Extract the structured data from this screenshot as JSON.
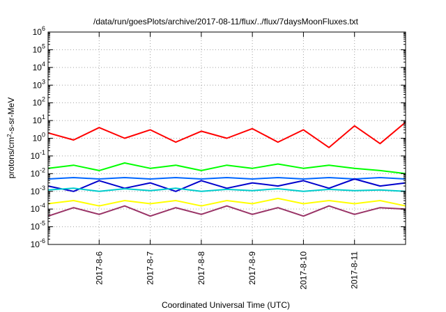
{
  "chart_data": {
    "type": "line",
    "title": "/data/run/goesPlots/archive/2017-08-11/flux/../flux/7daysMoonFluxes.txt",
    "xlabel": "Coordinated Universal Time (UTC)",
    "ylabel_parts": {
      "prefix": "protons/cm",
      "sup": "2",
      "suffix": "-s-sr-MeV"
    },
    "y_scale": "log",
    "ylim": [
      1e-06,
      1000000.0
    ],
    "y_ticks": [
      {
        "base": "10",
        "exp": "-6"
      },
      {
        "base": "10",
        "exp": "-5"
      },
      {
        "base": "10",
        "exp": "-4"
      },
      {
        "base": "10",
        "exp": "-3"
      },
      {
        "base": "10",
        "exp": "-2"
      },
      {
        "base": "10",
        "exp": "-1"
      },
      {
        "base": "10",
        "exp": "0"
      },
      {
        "base": "10",
        "exp": "1"
      },
      {
        "base": "10",
        "exp": "2"
      },
      {
        "base": "10",
        "exp": "3"
      },
      {
        "base": "10",
        "exp": "4"
      },
      {
        "base": "10",
        "exp": "5"
      },
      {
        "base": "10",
        "exp": "6"
      }
    ],
    "x_range": [
      "2017-08-05 00:00",
      "2017-08-12 00:00"
    ],
    "x_ticks": [
      {
        "label": "2017-8-6",
        "at": "2017-08-06 00:00"
      },
      {
        "label": "2017-8-7",
        "at": "2017-08-07 00:00"
      },
      {
        "label": "2017-8-8",
        "at": "2017-08-08 00:00"
      },
      {
        "label": "2017-8-9",
        "at": "2017-08-09 00:00"
      },
      {
        "label": "2017-8-10",
        "at": "2017-08-10 00:00"
      },
      {
        "label": "2017-8-11",
        "at": "2017-08-11 00:00"
      }
    ],
    "grid": true,
    "series": [
      {
        "color": "#ff0000",
        "x": [
          "2017-08-05 00:00",
          "2017-08-05 12:00",
          "2017-08-06 00:00",
          "2017-08-06 12:00",
          "2017-08-07 00:00",
          "2017-08-07 12:00",
          "2017-08-08 00:00",
          "2017-08-08 12:00",
          "2017-08-09 00:00",
          "2017-08-09 12:00",
          "2017-08-10 00:00",
          "2017-08-10 12:00",
          "2017-08-11 00:00",
          "2017-08-11 12:00",
          "2017-08-12 00:00"
        ],
        "y": [
          2,
          0.8,
          4,
          1,
          3,
          0.6,
          2.5,
          1,
          3.5,
          0.6,
          3,
          0.3,
          5,
          0.5,
          8
        ]
      },
      {
        "color": "#00ff00",
        "x": [
          "2017-08-05 00:00",
          "2017-08-05 12:00",
          "2017-08-06 00:00",
          "2017-08-06 12:00",
          "2017-08-07 00:00",
          "2017-08-07 12:00",
          "2017-08-08 00:00",
          "2017-08-08 12:00",
          "2017-08-09 00:00",
          "2017-08-09 12:00",
          "2017-08-10 00:00",
          "2017-08-10 12:00",
          "2017-08-11 00:00",
          "2017-08-11 12:00",
          "2017-08-12 00:00"
        ],
        "y": [
          0.02,
          0.03,
          0.015,
          0.04,
          0.02,
          0.03,
          0.015,
          0.03,
          0.02,
          0.035,
          0.02,
          0.03,
          0.02,
          0.015,
          0.01
        ]
      },
      {
        "color": "#0066ff",
        "x": [
          "2017-08-05 00:00",
          "2017-08-05 12:00",
          "2017-08-06 00:00",
          "2017-08-06 12:00",
          "2017-08-07 00:00",
          "2017-08-07 12:00",
          "2017-08-08 00:00",
          "2017-08-08 12:00",
          "2017-08-09 00:00",
          "2017-08-09 12:00",
          "2017-08-10 00:00",
          "2017-08-10 12:00",
          "2017-08-11 00:00",
          "2017-08-11 12:00",
          "2017-08-12 00:00"
        ],
        "y": [
          0.005,
          0.006,
          0.005,
          0.006,
          0.005,
          0.006,
          0.005,
          0.006,
          0.005,
          0.006,
          0.005,
          0.006,
          0.005,
          0.006,
          0.005
        ]
      },
      {
        "color": "#0000cc",
        "x": [
          "2017-08-05 00:00",
          "2017-08-05 12:00",
          "2017-08-06 00:00",
          "2017-08-06 12:00",
          "2017-08-07 00:00",
          "2017-08-07 12:00",
          "2017-08-08 00:00",
          "2017-08-08 12:00",
          "2017-08-09 00:00",
          "2017-08-09 12:00",
          "2017-08-10 00:00",
          "2017-08-10 12:00",
          "2017-08-11 00:00",
          "2017-08-11 12:00",
          "2017-08-12 00:00"
        ],
        "y": [
          0.002,
          0.001,
          0.004,
          0.0015,
          0.003,
          0.001,
          0.004,
          0.0015,
          0.003,
          0.002,
          0.004,
          0.0015,
          0.005,
          0.002,
          0.003
        ]
      },
      {
        "color": "#00cccc",
        "x": [
          "2017-08-05 00:00",
          "2017-08-05 12:00",
          "2017-08-06 00:00",
          "2017-08-06 12:00",
          "2017-08-07 00:00",
          "2017-08-07 12:00",
          "2017-08-08 00:00",
          "2017-08-08 12:00",
          "2017-08-09 00:00",
          "2017-08-09 12:00",
          "2017-08-10 00:00",
          "2017-08-10 12:00",
          "2017-08-11 00:00",
          "2017-08-11 12:00",
          "2017-08-12 00:00"
        ],
        "y": [
          0.0012,
          0.0015,
          0.001,
          0.0014,
          0.0011,
          0.0015,
          0.001,
          0.0013,
          0.0011,
          0.0014,
          0.001,
          0.0013,
          0.0011,
          0.0012,
          0.001
        ]
      },
      {
        "color": "#ffff00",
        "x": [
          "2017-08-05 00:00",
          "2017-08-05 12:00",
          "2017-08-06 00:00",
          "2017-08-06 12:00",
          "2017-08-07 00:00",
          "2017-08-07 12:00",
          "2017-08-08 00:00",
          "2017-08-08 12:00",
          "2017-08-09 00:00",
          "2017-08-09 12:00",
          "2017-08-10 00:00",
          "2017-08-10 12:00",
          "2017-08-11 00:00",
          "2017-08-11 12:00",
          "2017-08-12 00:00"
        ],
        "y": [
          0.0002,
          0.0003,
          0.00015,
          0.0003,
          0.0002,
          0.0003,
          0.00015,
          0.0003,
          0.0002,
          0.0004,
          0.0002,
          0.0003,
          0.0002,
          0.0003,
          0.00015
        ]
      },
      {
        "color": "#993366",
        "x": [
          "2017-08-05 00:00",
          "2017-08-05 12:00",
          "2017-08-06 00:00",
          "2017-08-06 12:00",
          "2017-08-07 00:00",
          "2017-08-07 12:00",
          "2017-08-08 00:00",
          "2017-08-08 12:00",
          "2017-08-09 00:00",
          "2017-08-09 12:00",
          "2017-08-10 00:00",
          "2017-08-10 12:00",
          "2017-08-11 00:00",
          "2017-08-11 12:00",
          "2017-08-12 00:00"
        ],
        "y": [
          4e-05,
          0.00012,
          5e-05,
          0.00015,
          4e-05,
          0.00012,
          5e-05,
          0.00015,
          5e-05,
          0.00012,
          4e-05,
          0.00015,
          5e-05,
          0.00012,
          0.0001
        ]
      }
    ]
  }
}
